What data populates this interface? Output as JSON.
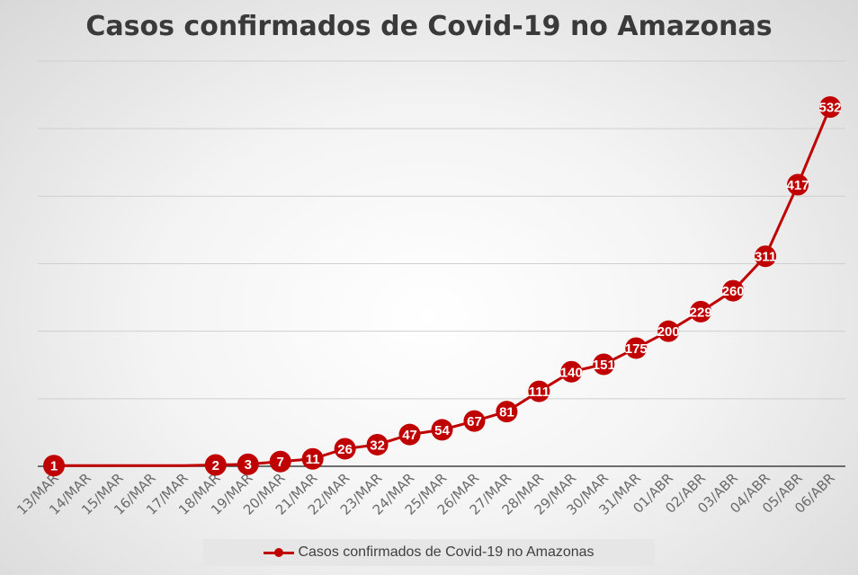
{
  "chart_data": {
    "type": "line",
    "title": "Casos confirmados de Covid-19 no Amazonas",
    "categories": [
      "13/MAR",
      "14/MAR",
      "15/MAR",
      "16/MAR",
      "17/MAR",
      "18/MAR",
      "19/MAR",
      "20/MAR",
      "21/MAR",
      "22/MAR",
      "23/MAR",
      "24/MAR",
      "25/MAR",
      "26/MAR",
      "27/MAR",
      "28/MAR",
      "29/MAR",
      "30/MAR",
      "31/MAR",
      "01/ABR",
      "02/ABR",
      "03/ABR",
      "04/ABR",
      "05/ABR",
      "06/ABR"
    ],
    "series": [
      {
        "name": "Casos confirmados de Covid-19 no Amazonas",
        "values": [
          1,
          1,
          1,
          1,
          1,
          2,
          3,
          7,
          11,
          26,
          32,
          47,
          54,
          67,
          81,
          111,
          140,
          151,
          175,
          200,
          229,
          260,
          311,
          417,
          532
        ],
        "labeled": [
          true,
          false,
          false,
          false,
          false,
          true,
          true,
          true,
          true,
          true,
          true,
          true,
          true,
          true,
          true,
          true,
          true,
          true,
          true,
          true,
          true,
          true,
          true,
          true,
          true
        ],
        "color": "#c00000"
      }
    ],
    "ylim": [
      0,
      600
    ],
    "ytick_step": 100,
    "grid": true,
    "legend": "bottom"
  }
}
